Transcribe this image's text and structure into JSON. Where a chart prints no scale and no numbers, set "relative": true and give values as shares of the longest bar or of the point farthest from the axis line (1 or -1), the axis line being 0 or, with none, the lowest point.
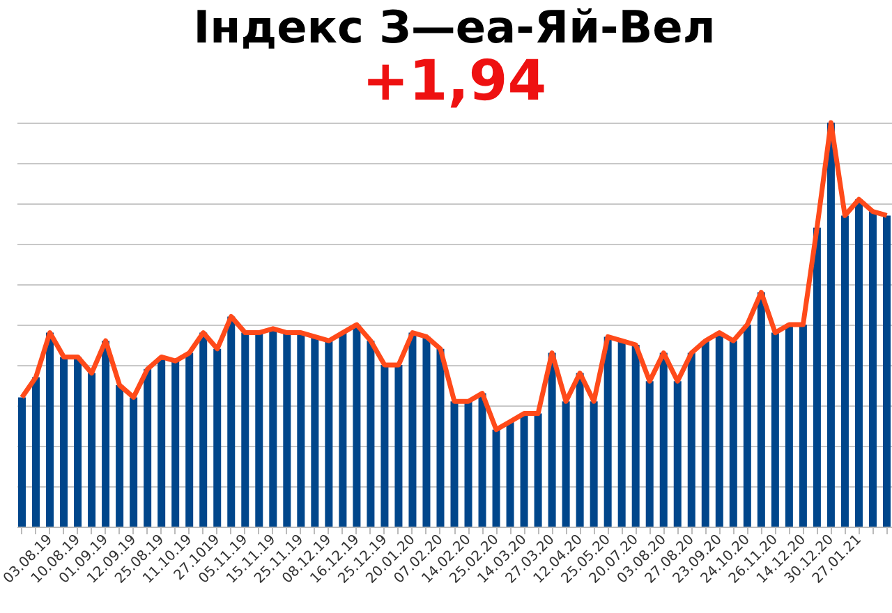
{
  "chart_data": {
    "type": "bar",
    "title": "Індекс З—еа-Яй-Вел",
    "subtitle": "+1,94",
    "relative": true,
    "grid": "y",
    "categories": [
      null,
      null,
      "03.08.19",
      null,
      "10.08.19",
      null,
      "01.09.19",
      null,
      "12.09.19",
      null,
      "25.08.19",
      null,
      "11.10.19",
      null,
      "27.1019",
      null,
      "05.11.19",
      null,
      "15.11.19",
      null,
      "25.11.19",
      null,
      "08.12.19",
      null,
      "16.12.19",
      null,
      "25.12.19",
      null,
      "20.01.20",
      null,
      "07.02.20",
      null,
      "14.02.20",
      null,
      "25.02.20",
      null,
      "14.03.20",
      null,
      "27.03.20",
      null,
      "12.04.20",
      null,
      "25.05.20",
      null,
      "20.07.20",
      null,
      "03.08.20",
      null,
      "27.08.20",
      null,
      "23.09.20",
      null,
      "24.10.20",
      null,
      "26.11.20",
      null,
      "14.12.20",
      null,
      "30.12.20",
      null,
      "27.01.21",
      null,
      null
    ],
    "series": [
      {
        "color": "#00468b",
        "values": [
          0.32,
          0.37,
          0.48,
          0.42,
          0.42,
          0.38,
          0.46,
          0.35,
          0.32,
          0.39,
          0.42,
          0.41,
          0.43,
          0.48,
          0.44,
          0.52,
          0.48,
          0.48,
          0.49,
          0.48,
          0.48,
          0.47,
          0.46,
          0.48,
          0.5,
          0.46,
          0.4,
          0.4,
          0.48,
          0.47,
          0.44,
          0.31,
          0.31,
          0.33,
          0.24,
          0.26,
          0.28,
          0.28,
          0.43,
          0.31,
          0.38,
          0.31,
          0.47,
          0.46,
          0.45,
          0.36,
          0.43,
          0.36,
          0.43,
          0.46,
          0.48,
          0.46,
          0.5,
          0.58,
          0.48,
          0.5,
          0.5,
          0.74,
          1,
          0.77,
          0.81,
          0.78,
          0.77
        ]
      },
      {
        "type": "line",
        "color": "#ff4a1a",
        "values": [
          0.32,
          0.37,
          0.48,
          0.42,
          0.42,
          0.38,
          0.46,
          0.35,
          0.32,
          0.39,
          0.42,
          0.41,
          0.43,
          0.48,
          0.44,
          0.52,
          0.48,
          0.48,
          0.49,
          0.48,
          0.48,
          0.47,
          0.46,
          0.48,
          0.5,
          0.46,
          0.4,
          0.4,
          0.48,
          0.47,
          0.44,
          0.31,
          0.31,
          0.33,
          0.24,
          0.26,
          0.28,
          0.28,
          0.43,
          0.31,
          0.38,
          0.31,
          0.47,
          0.46,
          0.45,
          0.36,
          0.43,
          0.36,
          0.43,
          0.46,
          0.48,
          0.46,
          0.5,
          0.58,
          0.48,
          0.5,
          0.5,
          0.74,
          1,
          0.77,
          0.81,
          0.78,
          0.77
        ]
      }
    ]
  }
}
